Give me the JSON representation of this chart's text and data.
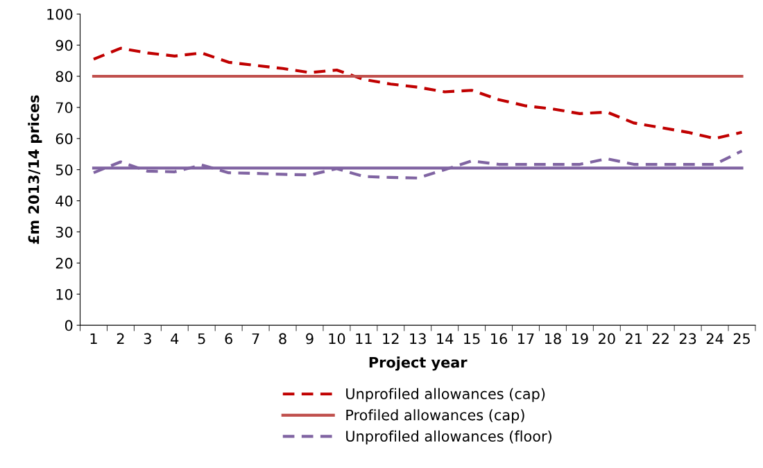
{
  "chart_data": {
    "type": "line",
    "xlabel": "Project year",
    "ylabel": "£m 2013/14 prices",
    "categories": [
      "1",
      "2",
      "3",
      "4",
      "5",
      "6",
      "7",
      "8",
      "9",
      "10",
      "11",
      "12",
      "13",
      "14",
      "15",
      "16",
      "17",
      "18",
      "19",
      "20",
      "21",
      "22",
      "23",
      "24",
      "25"
    ],
    "ylim": [
      0,
      100
    ],
    "yticks": [
      0,
      10,
      20,
      30,
      40,
      50,
      60,
      70,
      80,
      90,
      100
    ],
    "grid": false,
    "legend": "bottom",
    "marker": "none",
    "series": [
      {
        "name": "Unprofiled allowances (cap)",
        "color": "#c00000",
        "line_style": "dashed",
        "values": [
          85.5,
          89,
          87.5,
          86.5,
          87.5,
          84.5,
          83.5,
          82.5,
          81.2,
          82,
          79,
          77.5,
          76.5,
          75,
          75.5,
          72.5,
          70.5,
          69.5,
          68,
          68.5,
          65,
          63.5,
          62,
          60,
          62
        ]
      },
      {
        "name": "Profiled allowances (cap)",
        "color": "#c0504d",
        "line_style": "solid",
        "values": [
          80,
          80,
          80,
          80,
          80,
          80,
          80,
          80,
          80,
          80,
          80,
          80,
          80,
          80,
          80,
          80,
          80,
          80,
          80,
          80,
          80,
          80,
          80,
          80,
          80
        ]
      },
      {
        "name": "Unprofiled allowances (floor)",
        "color": "#8064a2",
        "line_style": "dashed",
        "values": [
          49,
          52.5,
          49.5,
          49.3,
          51.5,
          49,
          48.8,
          48.5,
          48.3,
          50.3,
          47.8,
          47.5,
          47.3,
          50,
          52.8,
          51.7,
          51.7,
          51.7,
          51.7,
          53.5,
          51.7,
          51.7,
          51.7,
          51.7,
          56
        ]
      },
      {
        "color": "#8064a2",
        "line_style": "solid",
        "values": [
          50.5,
          50.5,
          50.5,
          50.5,
          50.5,
          50.5,
          50.5,
          50.5,
          50.5,
          50.5,
          50.5,
          50.5,
          50.5,
          50.5,
          50.5,
          50.5,
          50.5,
          50.5,
          50.5,
          50.5,
          50.5,
          50.5,
          50.5,
          50.5,
          50.5
        ]
      }
    ]
  }
}
